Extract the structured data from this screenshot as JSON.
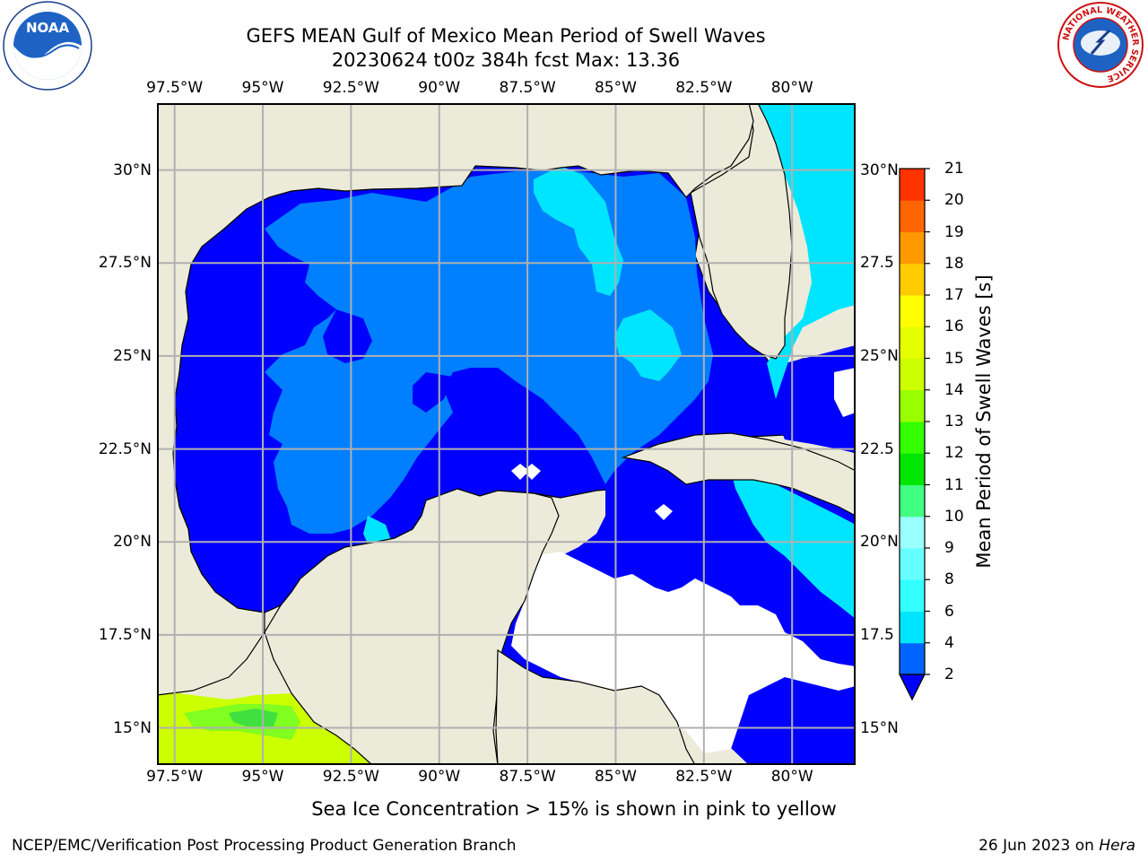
{
  "title": {
    "line1": "GEFS MEAN Gulf of Mexico Mean Period of Swell Waves",
    "line2": "20230624 t00z 384h fcst   Max: 13.36"
  },
  "map": {
    "lon_ticks": [
      "97.5°W",
      "95°W",
      "92.5°W",
      "90°W",
      "87.5°W",
      "85°W",
      "82.5°W",
      "80°W"
    ],
    "lat_ticks_left": [
      "30°N",
      "27.5°N",
      "25°N",
      "22.5°N",
      "20°N",
      "17.5°N",
      "15°N"
    ],
    "lat_ticks_right": [
      "30°N",
      "27.5",
      "25°N",
      "22.5",
      "20°N",
      "17.5",
      "15°N"
    ],
    "lon_range": [
      -98,
      -78.2
    ],
    "lat_range": [
      14,
      31.8
    ],
    "colors": {
      "land": "#ecebda",
      "coast": "#000000",
      "grid": "#b0b0b0",
      "no_data": "#ffffff"
    }
  },
  "colorbar": {
    "label": "Mean Period of Swell Waves [s]",
    "ticks": [
      "2",
      "4",
      "6",
      "8",
      "9",
      "10",
      "11",
      "12",
      "13",
      "14",
      "15",
      "16",
      "17",
      "18",
      "19",
      "20",
      "21"
    ],
    "colors": [
      "#0064ff",
      "#00e5ff",
      "#33ffff",
      "#66ffff",
      "#99ffff",
      "#40ff80",
      "#00e600",
      "#33ff00",
      "#99ff00",
      "#ccff00",
      "#e5ff00",
      "#ffff00",
      "#ffcc00",
      "#ff9900",
      "#ff6600",
      "#ff3300",
      "#ff0000"
    ],
    "under_color": "#0000ff"
  },
  "subtitle": "Sea Ice Concentration > 15% is shown in pink to yellow",
  "footer": {
    "left": "NCEP/EMC/Verification Post Processing Product Generation Branch",
    "right_date": "26 Jun 2023 on ",
    "right_host": "Hera"
  },
  "logos": {
    "noaa_text": "NOAA",
    "noaa_ring": "NATIONAL OCEANIC AND ATMOSPHERIC ADMINISTRATION · U.S. DEPARTMENT OF COMMERCE",
    "nws_ring": "NATIONAL WEATHER SERVICE"
  },
  "field_levels": {
    "under_2": "#0000ff",
    "2_4": "#0080ff",
    "4_6": "#00e5ff",
    "6_8": "#33ffff",
    "10_12": "#40e040",
    "12_13": "#b8ff00",
    "13_14": "#ccff00"
  }
}
